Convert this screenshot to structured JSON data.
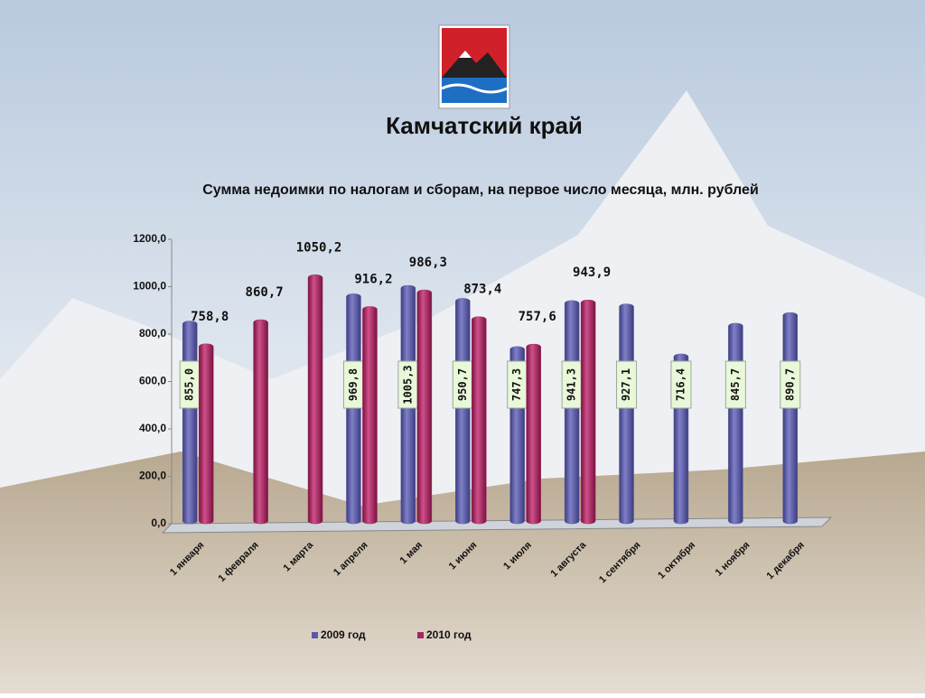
{
  "header": {
    "title": "Камчатский край"
  },
  "chart_data": {
    "type": "bar",
    "title": "Сумма недоимки по налогам и сборам, на первое число месяца, млн. рублей",
    "categories": [
      "1 января",
      "1 февраля",
      "1 марта",
      "1 апреля",
      "1 мая",
      "1 июня",
      "1 июля",
      "1 августа",
      "1 сентября",
      "1 октября",
      "1 ноября",
      "1 декабря"
    ],
    "series": [
      {
        "name": "2009 год",
        "color": "#5b5ba3",
        "values": [
          855.0,
          null,
          null,
          969.8,
          1005.3,
          950.7,
          747.3,
          941.3,
          927.1,
          716.4,
          845.7,
          890.7
        ],
        "value_labels": [
          "855,0",
          null,
          null,
          "969,8",
          "1005,3",
          "950,7",
          "747,3",
          "941,3",
          "927,1",
          "716,4",
          "845,7",
          "890,7"
        ]
      },
      {
        "name": "2010 год",
        "color": "#a3275e",
        "values": [
          758.8,
          860.7,
          1050.2,
          916.2,
          986.3,
          873.4,
          757.6,
          943.9,
          null,
          null,
          null,
          null
        ],
        "value_labels": [
          "758,8",
          "860,7",
          "1050,2",
          "916,2",
          "986,3",
          "873,4",
          "757,6",
          "943,9",
          null,
          null,
          null,
          null
        ]
      }
    ],
    "ylim": [
      0,
      1200
    ],
    "yticks": [
      {
        "value": 0,
        "label": "0,0"
      },
      {
        "value": 200,
        "label": "200,0"
      },
      {
        "value": 400,
        "label": "400,0"
      },
      {
        "value": 600,
        "label": "600,0"
      },
      {
        "value": 800,
        "label": "800,0"
      },
      {
        "value": 1000,
        "label": "1000,0"
      },
      {
        "value": 1200,
        "label": "1200,0"
      }
    ]
  }
}
